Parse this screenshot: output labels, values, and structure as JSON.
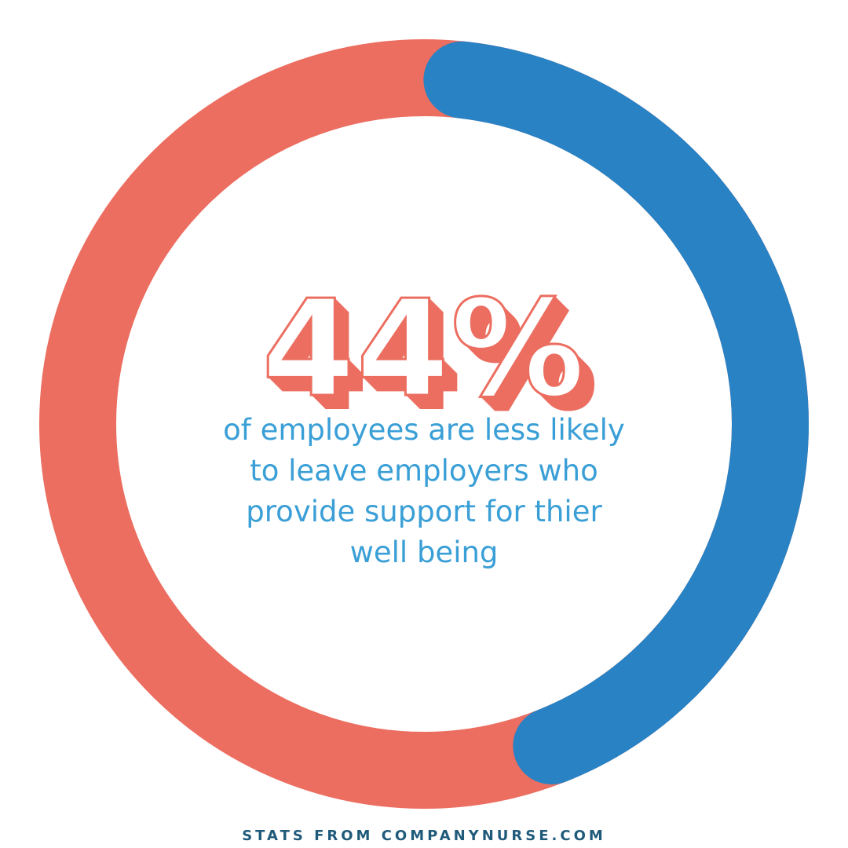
{
  "chart_data": {
    "type": "donut",
    "values": [
      44
    ],
    "value_labels": [
      "44%"
    ],
    "ylim": [
      0,
      100
    ],
    "color": "#2882c4",
    "track_color": "#ec6e60",
    "caption": [
      "of employees are less likely",
      "to leave employers who",
      "provide support for thier",
      "well being"
    ],
    "caption_color": "#3a9fd6",
    "source": "STATS FROM COMPANYNURSE.COM"
  }
}
